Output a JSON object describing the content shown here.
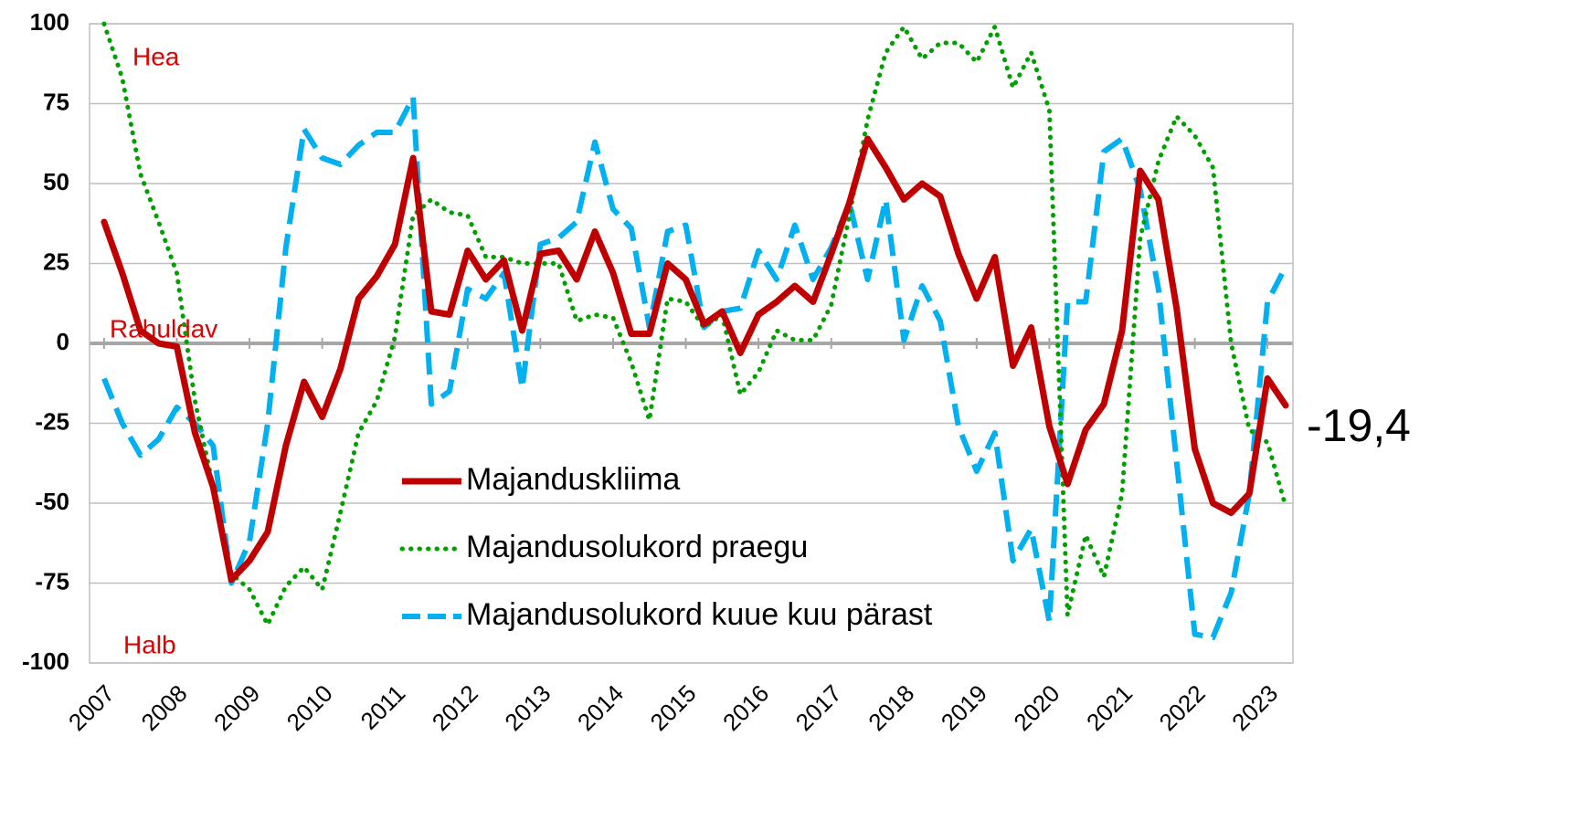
{
  "chart_data": {
    "type": "line",
    "annotations": {
      "good": "Hea",
      "fair": "Rahuldav",
      "bad": "Halb",
      "last_value": "-19,4"
    },
    "x": [
      2007,
      2007.25,
      2007.5,
      2007.75,
      2008,
      2008.25,
      2008.5,
      2008.75,
      2009,
      2009.25,
      2009.5,
      2009.75,
      2010,
      2010.25,
      2010.5,
      2010.75,
      2011,
      2011.25,
      2011.5,
      2011.75,
      2012,
      2012.25,
      2012.5,
      2012.75,
      2013,
      2013.25,
      2013.5,
      2013.75,
      2014,
      2014.25,
      2014.5,
      2014.75,
      2015,
      2015.25,
      2015.5,
      2015.75,
      2016,
      2016.25,
      2016.5,
      2016.75,
      2017,
      2017.25,
      2017.5,
      2017.75,
      2018,
      2018.25,
      2018.5,
      2018.75,
      2019,
      2019.25,
      2019.5,
      2019.75,
      2020,
      2020.25,
      2020.5,
      2020.75,
      2021,
      2021.25,
      2021.5,
      2021.75,
      2022,
      2022.25,
      2022.5,
      2022.75,
      2023,
      2023.25
    ],
    "series": [
      {
        "name": "Majanduskliima",
        "color": "#c00000",
        "style": "solid",
        "values": [
          38,
          22,
          4,
          0,
          -1,
          -28,
          -45,
          -74,
          -68,
          -59,
          -32,
          -12,
          -23,
          -8,
          14,
          21,
          31,
          58,
          10,
          9,
          29,
          20,
          26,
          4,
          28,
          29,
          20,
          35,
          22,
          3,
          3,
          25,
          20,
          6,
          10,
          -3,
          9,
          13,
          18,
          13,
          28,
          44,
          64,
          55,
          45,
          50,
          46,
          28,
          14,
          27,
          -7,
          5,
          -26,
          -44,
          -27,
          -19,
          4,
          54,
          45,
          11,
          -33,
          -50,
          -53,
          -47,
          -11,
          -19.4
        ]
      },
      {
        "name": "Majandusolukord praegu",
        "color": "#00a000",
        "style": "dotted",
        "values": [
          100,
          83,
          53,
          38,
          22,
          -18,
          -45,
          -72,
          -77,
          -88,
          -76,
          -70,
          -77,
          -53,
          -28,
          -18,
          2,
          40,
          45,
          41,
          40,
          27,
          27,
          25,
          25,
          25,
          7,
          9,
          8,
          -6,
          -24,
          14,
          13,
          5,
          9,
          -16,
          -9,
          4,
          1,
          1,
          12,
          40,
          70,
          91,
          99,
          89,
          94,
          94,
          88,
          99,
          80,
          91,
          73,
          -85,
          -60,
          -73,
          -47,
          33,
          57,
          71,
          65,
          55,
          0,
          -27,
          -31,
          -51
        ]
      },
      {
        "name": "Majandusolukord kuue kuu pärast",
        "color": "#00b0f0",
        "style": "dashed",
        "values": [
          -11,
          -25,
          -35,
          -30,
          -20,
          -25,
          -32,
          -75,
          -62,
          -25,
          30,
          67,
          58,
          56,
          62,
          66,
          66,
          77,
          -19,
          -15,
          17,
          14,
          22,
          -14,
          31,
          33,
          38,
          63,
          42,
          36,
          5,
          35,
          37,
          5,
          10,
          11,
          29,
          20,
          37,
          20,
          30,
          44,
          20,
          45,
          1,
          18,
          7,
          -26,
          -40,
          -28,
          -68,
          -58,
          -87,
          13,
          13,
          60,
          64,
          48,
          17,
          -37,
          -91,
          -92,
          -78,
          -47,
          13,
          24
        ]
      }
    ],
    "xlim": [
      2006.8,
      2023.35
    ],
    "xticks": [
      2007,
      2008,
      2009,
      2010,
      2011,
      2012,
      2013,
      2014,
      2015,
      2016,
      2017,
      2018,
      2019,
      2020,
      2021,
      2022,
      2023
    ],
    "ylim": [
      -100,
      100
    ],
    "yticks": [
      -100,
      -75,
      -50,
      -25,
      0,
      25,
      50,
      75,
      100
    ],
    "grid": true
  }
}
